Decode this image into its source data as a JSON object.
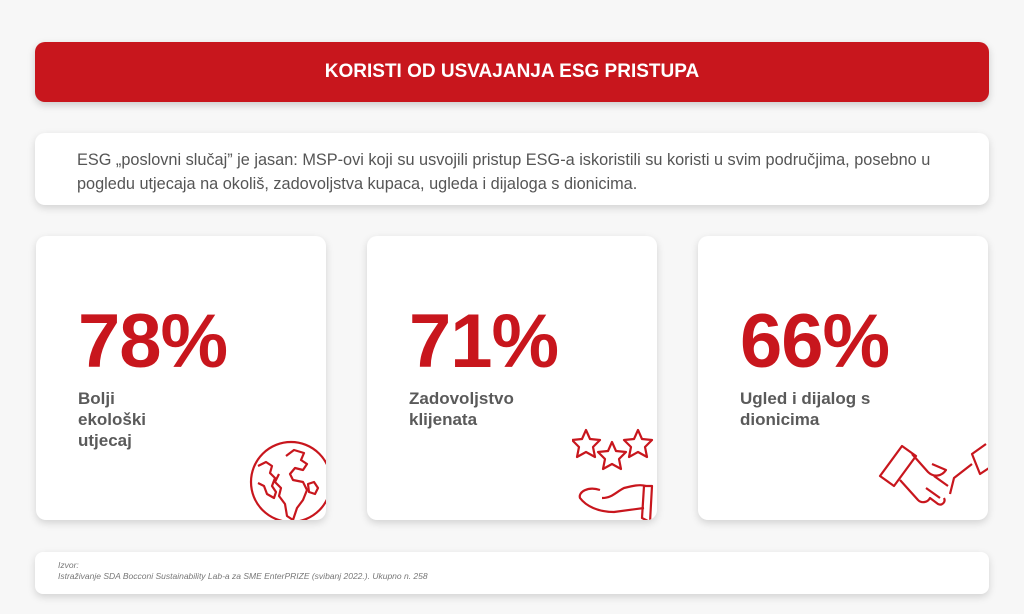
{
  "header": {
    "title": "KORISTI OD USVAJANJA ESG PRISTUPA"
  },
  "intro": {
    "text": "ESG „poslovni slučaj” je jasan: MSP-ovi koji su usvojili pristup ESG-a iskoristili su koristi u svim područjima, posebno u pogledu utjecaja na okoliš, zadovoljstva kupaca, ugleda i dijaloga s dionicima."
  },
  "cards": [
    {
      "value": "78%",
      "label": "Bolji ekološki utjecaj",
      "icon": "globe-icon"
    },
    {
      "value": "71%",
      "label": "Zadovoljstvo klijenata",
      "icon": "stars-hand-icon"
    },
    {
      "value": "66%",
      "label": "Ugled i dijalog s dionicima",
      "icon": "handshake-icon"
    }
  ],
  "footer": {
    "source_label": "Izvor:",
    "source_text": "Istraživanje SDA Bocconi Sustainability Lab-a za SME EnterPRIZE (svibanj 2022.). Ukupno n. 258"
  },
  "colors": {
    "accent": "#c8161d",
    "text": "#555555"
  }
}
